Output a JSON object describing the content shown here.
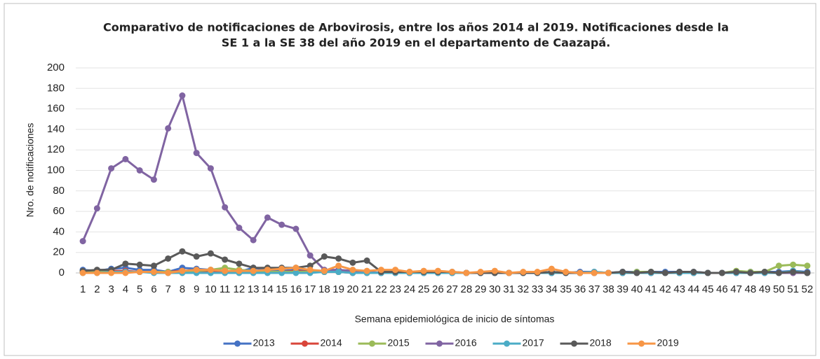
{
  "chart_data": {
    "type": "line",
    "title": [
      "Comparativo de notificaciones de Arbovirosis, entre los años 2014 al 2019. Notificaciones desde la",
      "SE 1 a la SE 38 del año 2019 en el departamento de Caazapá."
    ],
    "x_label": "Semana epidemiológica de inicio de síntomas",
    "y_label": "Nro. de notificaciones",
    "categories": [
      "1",
      "2",
      "3",
      "4",
      "5",
      "6",
      "7",
      "8",
      "9",
      "10",
      "11",
      "12",
      "13",
      "14",
      "15",
      "16",
      "17",
      "18",
      "19",
      "20",
      "21",
      "22",
      "23",
      "24",
      "25",
      "26",
      "27",
      "28",
      "29",
      "30",
      "31",
      "32",
      "33",
      "34",
      "35",
      "36",
      "37",
      "38",
      "39",
      "40",
      "41",
      "42",
      "43",
      "44",
      "45",
      "46",
      "47",
      "48",
      "49",
      "50",
      "51",
      "52"
    ],
    "ylim": [
      0,
      200
    ],
    "yticks": [
      0,
      20,
      40,
      60,
      80,
      100,
      120,
      140,
      160,
      180,
      200
    ],
    "grid": true,
    "legend": "bottom",
    "series": [
      {
        "name": "2013",
        "color": "#4472c4",
        "values": [
          3,
          2,
          4,
          5,
          3,
          3,
          1,
          5,
          4,
          3,
          2,
          1,
          5,
          3,
          2,
          3,
          2,
          1,
          1,
          1,
          1,
          0,
          1,
          0,
          0,
          1,
          0,
          0,
          0,
          0,
          0,
          0,
          0,
          0,
          0,
          1,
          1,
          0,
          1,
          1,
          1,
          1,
          1,
          1,
          0,
          0,
          0,
          1,
          1,
          1,
          2,
          1
        ]
      },
      {
        "name": "2014",
        "color": "#d9453a",
        "values": [
          1,
          2,
          2,
          2,
          1,
          1,
          1,
          2,
          2,
          1,
          2,
          1,
          1,
          1,
          1,
          2,
          1,
          1,
          1,
          0,
          0,
          0,
          0,
          0,
          0,
          0,
          0,
          0,
          0,
          0,
          0,
          0,
          0,
          0,
          0,
          0,
          0,
          0,
          0,
          0,
          0,
          0,
          0,
          0,
          0,
          0,
          0,
          0,
          0,
          0,
          0,
          0
        ]
      },
      {
        "name": "2015",
        "color": "#9bbb59",
        "values": [
          1,
          1,
          1,
          1,
          1,
          1,
          1,
          1,
          2,
          3,
          5,
          3,
          2,
          1,
          1,
          1,
          1,
          1,
          1,
          1,
          0,
          0,
          0,
          0,
          0,
          0,
          0,
          0,
          0,
          0,
          0,
          0,
          0,
          0,
          0,
          0,
          0,
          0,
          0,
          1,
          1,
          0,
          0,
          0,
          0,
          0,
          2,
          1,
          1,
          7,
          8,
          7
        ]
      },
      {
        "name": "2016",
        "color": "#8064a2",
        "values": [
          31,
          63,
          102,
          111,
          100,
          91,
          141,
          173,
          117,
          102,
          64,
          44,
          32,
          54,
          47,
          43,
          17,
          3,
          3,
          2,
          1,
          0,
          0,
          0,
          0,
          0,
          0,
          0,
          0,
          0,
          0,
          0,
          0,
          0,
          0,
          0,
          0,
          0,
          0,
          0,
          0,
          0,
          0,
          0,
          0,
          0,
          0,
          0,
          0,
          0,
          0,
          0
        ]
      },
      {
        "name": "2017",
        "color": "#4bacc6",
        "values": [
          0,
          0,
          1,
          1,
          1,
          0,
          0,
          0,
          0,
          0,
          0,
          0,
          0,
          0,
          0,
          0,
          0,
          1,
          1,
          0,
          0,
          0,
          0,
          0,
          0,
          0,
          0,
          0,
          0,
          0,
          0,
          0,
          0,
          0,
          0,
          0,
          1,
          0,
          0,
          0,
          0,
          0,
          0,
          0,
          0,
          0,
          0,
          0,
          0,
          0,
          2,
          0
        ]
      },
      {
        "name": "2018",
        "color": "#595959",
        "values": [
          2,
          3,
          3,
          9,
          8,
          7,
          14,
          21,
          16,
          19,
          13,
          9,
          5,
          5,
          5,
          5,
          7,
          16,
          14,
          10,
          12,
          1,
          1,
          1,
          1,
          1,
          1,
          0,
          0,
          0,
          0,
          0,
          0,
          1,
          0,
          0,
          0,
          0,
          1,
          0,
          1,
          0,
          1,
          1,
          0,
          0,
          1,
          0,
          1,
          0,
          1,
          0
        ]
      },
      {
        "name": "2019",
        "color": "#f79646",
        "values": [
          0,
          0,
          0,
          0,
          1,
          1,
          0,
          2,
          3,
          3,
          2,
          2,
          2,
          3,
          4,
          5,
          3,
          2,
          7,
          3,
          2,
          3,
          3,
          1,
          2,
          2,
          1,
          0,
          1,
          2,
          0,
          1,
          1,
          4,
          1,
          0,
          0,
          0,
          null,
          null,
          null,
          null,
          null,
          null,
          null,
          null,
          null,
          null,
          null,
          null,
          null,
          null
        ]
      }
    ]
  }
}
